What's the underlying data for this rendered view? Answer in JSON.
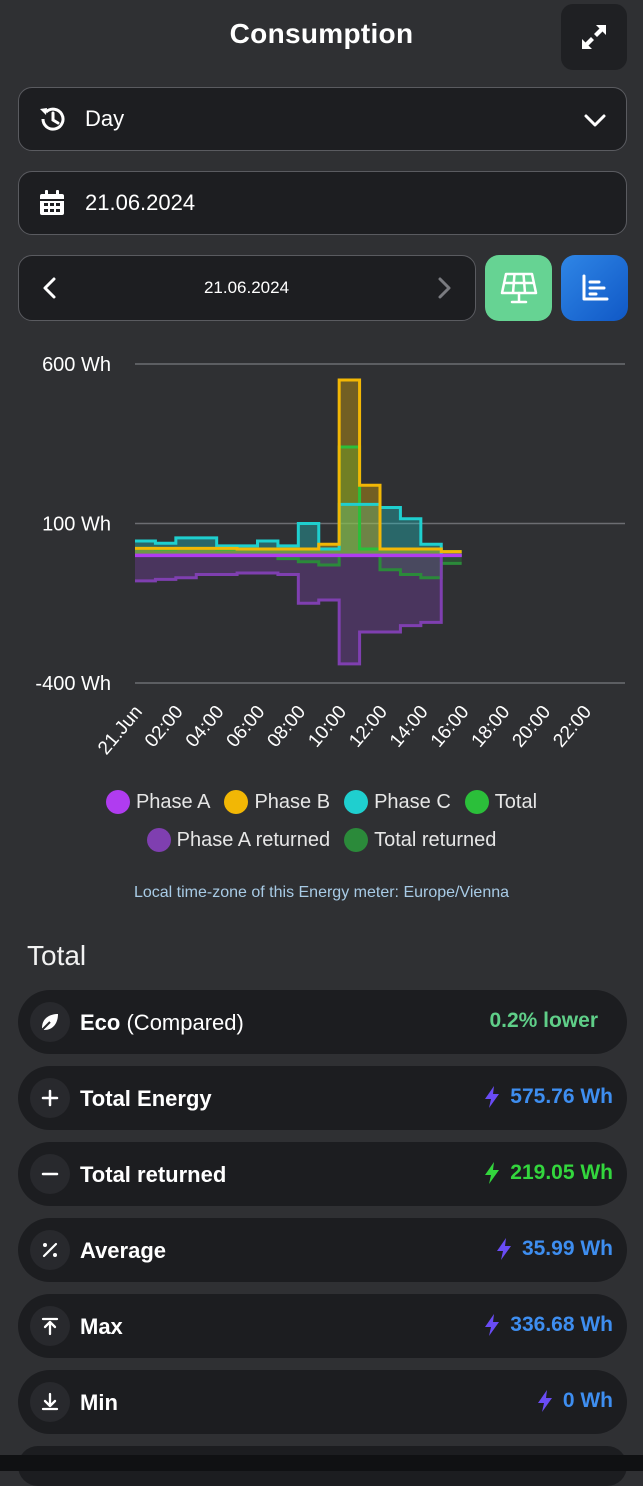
{
  "header": {
    "title": "Consumption"
  },
  "period_select": {
    "value": "Day"
  },
  "date_field": {
    "value": "21.06.2024"
  },
  "date_nav": {
    "current": "21.06.2024"
  },
  "chart_data": {
    "type": "line",
    "step": true,
    "y_axis": {
      "ticks": [
        "600 Wh",
        "100 Wh",
        "-400 Wh"
      ],
      "range": [
        -400,
        600
      ]
    },
    "x_axis": {
      "ticks": [
        "21.Jun",
        "02:00",
        "04:00",
        "06:00",
        "08:00",
        "10:00",
        "12:00",
        "14:00",
        "16:00",
        "18:00",
        "20:00",
        "22:00"
      ]
    },
    "x_hours": [
      0,
      1,
      2,
      3,
      4,
      5,
      6,
      7,
      8,
      9,
      10,
      11,
      12,
      13,
      14,
      15
    ],
    "series": [
      {
        "name": "Phase A",
        "color": "#b03cf0",
        "values": [
          0,
          0,
          0,
          0,
          0,
          0,
          0,
          0,
          0,
          0,
          0,
          0,
          0,
          0,
          0,
          0
        ]
      },
      {
        "name": "Phase B",
        "color": "#f2b705",
        "values": [
          22,
          22,
          22,
          22,
          22,
          20,
          20,
          20,
          20,
          35,
          550,
          220,
          20,
          20,
          20,
          12
        ]
      },
      {
        "name": "Phase C",
        "color": "#1fcfcf",
        "values": [
          45,
          38,
          55,
          55,
          30,
          30,
          45,
          30,
          100,
          20,
          160,
          160,
          150,
          115,
          35,
          0
        ]
      },
      {
        "name": "Total",
        "color": "#2bbf3a",
        "values": [
          22,
          20,
          22,
          22,
          20,
          20,
          20,
          20,
          20,
          20,
          340,
          20,
          20,
          20,
          20,
          12
        ]
      },
      {
        "name": "Phase A returned",
        "color": "#7f3fb0",
        "values": [
          -80,
          -75,
          -70,
          -60,
          -60,
          -55,
          -55,
          -60,
          -150,
          -140,
          -340,
          -240,
          -240,
          -220,
          -210,
          0
        ]
      },
      {
        "name": "Total returned",
        "color": "#2b8a3a",
        "values": [
          0,
          0,
          0,
          0,
          0,
          0,
          0,
          -10,
          -20,
          -30,
          0,
          0,
          -45,
          -60,
          -70,
          -25
        ]
      }
    ],
    "legend": {
      "placement": "bottom"
    }
  },
  "timezone_note": "Local time-zone of this Energy meter: Europe/Vienna",
  "totals": {
    "title": "Total",
    "items": [
      {
        "label": "Eco",
        "sub": "(Compared)",
        "value": "0.2% lower",
        "icon": "leaf-icon",
        "color": "#5fce88",
        "bolt": false
      },
      {
        "label": "Total Energy",
        "sub": "",
        "value": "575.76 Wh",
        "icon": "plus-icon",
        "color": "#3e8ef0",
        "bolt": true,
        "bolt_color": "#6a4cf5"
      },
      {
        "label": "Total returned",
        "sub": "",
        "value": "219.05 Wh",
        "icon": "minus-icon",
        "color": "#33d63d",
        "bolt": true,
        "bolt_color": "#33d63d"
      },
      {
        "label": "Average",
        "sub": "",
        "value": "35.99 Wh",
        "icon": "percent-icon",
        "color": "#3e8ef0",
        "bolt": true,
        "bolt_color": "#6a4cf5"
      },
      {
        "label": "Max",
        "sub": "",
        "value": "336.68 Wh",
        "icon": "arrow-up-to-line-icon",
        "color": "#3e8ef0",
        "bolt": true,
        "bolt_color": "#6a4cf5"
      },
      {
        "label": "Min",
        "sub": "",
        "value": "0 Wh",
        "icon": "arrow-down-to-line-icon",
        "color": "#3e8ef0",
        "bolt": true,
        "bolt_color": "#6a4cf5"
      }
    ]
  }
}
